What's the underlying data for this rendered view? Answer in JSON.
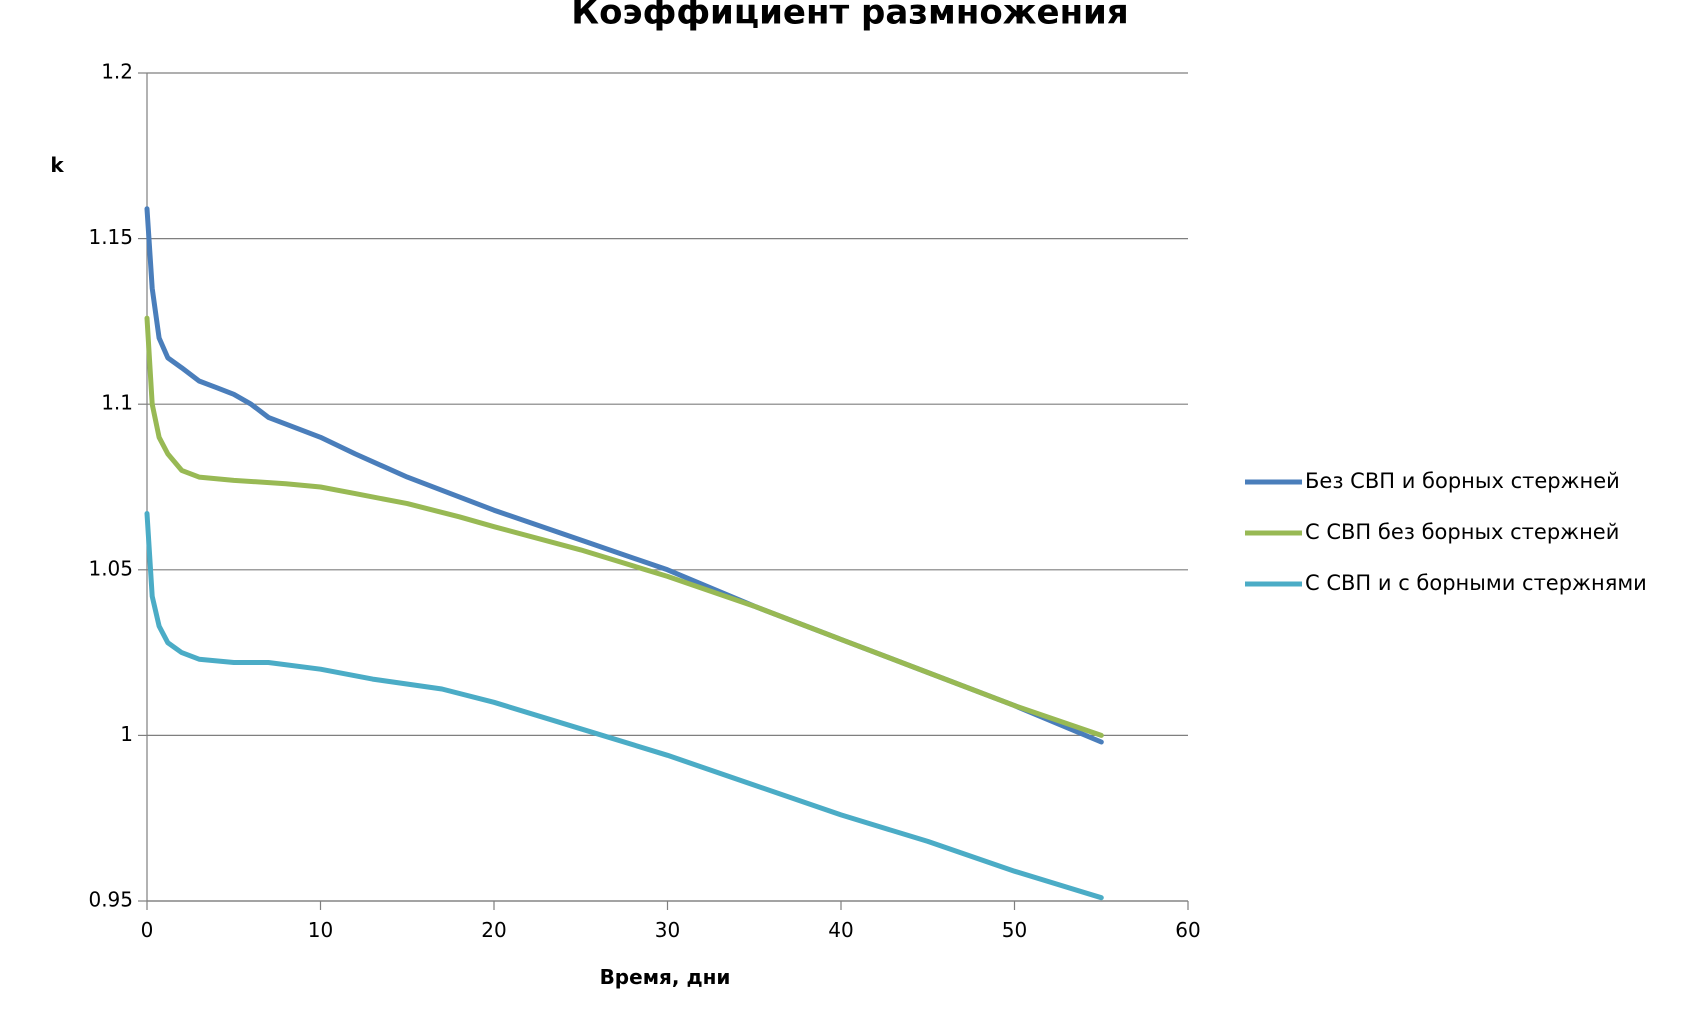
{
  "chart_data": {
    "type": "line",
    "title": "Коэффициент размножения",
    "xlabel": "Время, дни",
    "ylabel": "k",
    "xlim": [
      0,
      60
    ],
    "ylim": [
      0.95,
      1.2
    ],
    "x_ticks": [
      0,
      10,
      20,
      30,
      40,
      50,
      60
    ],
    "x_tick_labels": [
      "0",
      "10",
      "20",
      "30",
      "40",
      "50",
      "60"
    ],
    "y_ticks": [
      0.95,
      1.0,
      1.05,
      1.1,
      1.15,
      1.2
    ],
    "y_tick_labels": [
      "0.95",
      "1",
      "1.05",
      "1.1",
      "1.15",
      "1.2"
    ],
    "grid": true,
    "legend_position": "right",
    "series": [
      {
        "name": "Без СВП и борных стержней",
        "color": "#4a7ebb",
        "points": [
          [
            0,
            1.159
          ],
          [
            0.3,
            1.135
          ],
          [
            0.7,
            1.12
          ],
          [
            1.2,
            1.114
          ],
          [
            2,
            1.111
          ],
          [
            3,
            1.107
          ],
          [
            4,
            1.105
          ],
          [
            5,
            1.103
          ],
          [
            6,
            1.1
          ],
          [
            7,
            1.096
          ],
          [
            8,
            1.094
          ],
          [
            10,
            1.09
          ],
          [
            12,
            1.085
          ],
          [
            15,
            1.078
          ],
          [
            18,
            1.072
          ],
          [
            20,
            1.068
          ],
          [
            25,
            1.059
          ],
          [
            30,
            1.05
          ],
          [
            35,
            1.039
          ],
          [
            40,
            1.029
          ],
          [
            45,
            1.019
          ],
          [
            50,
            1.009
          ],
          [
            55,
            0.998
          ]
        ]
      },
      {
        "name": "С СВП без борных стержней",
        "color": "#98b954",
        "points": [
          [
            0,
            1.126
          ],
          [
            0.3,
            1.1
          ],
          [
            0.7,
            1.09
          ],
          [
            1.2,
            1.085
          ],
          [
            2,
            1.08
          ],
          [
            3,
            1.078
          ],
          [
            5,
            1.077
          ],
          [
            8,
            1.076
          ],
          [
            10,
            1.075
          ],
          [
            12,
            1.073
          ],
          [
            15,
            1.07
          ],
          [
            18,
            1.066
          ],
          [
            20,
            1.063
          ],
          [
            25,
            1.056
          ],
          [
            30,
            1.048
          ],
          [
            35,
            1.039
          ],
          [
            40,
            1.029
          ],
          [
            45,
            1.019
          ],
          [
            50,
            1.009
          ],
          [
            55,
            1.0
          ]
        ]
      },
      {
        "name": "С СВП и с борными стержнями",
        "color": "#4bacc6",
        "points": [
          [
            0,
            1.067
          ],
          [
            0.3,
            1.042
          ],
          [
            0.7,
            1.033
          ],
          [
            1.2,
            1.028
          ],
          [
            2,
            1.025
          ],
          [
            3,
            1.023
          ],
          [
            5,
            1.022
          ],
          [
            7,
            1.022
          ],
          [
            10,
            1.02
          ],
          [
            13,
            1.017
          ],
          [
            17,
            1.014
          ],
          [
            20,
            1.01
          ],
          [
            25,
            1.002
          ],
          [
            30,
            0.994
          ],
          [
            35,
            0.985
          ],
          [
            40,
            0.976
          ],
          [
            45,
            0.968
          ],
          [
            50,
            0.959
          ],
          [
            55,
            0.951
          ]
        ]
      }
    ]
  }
}
